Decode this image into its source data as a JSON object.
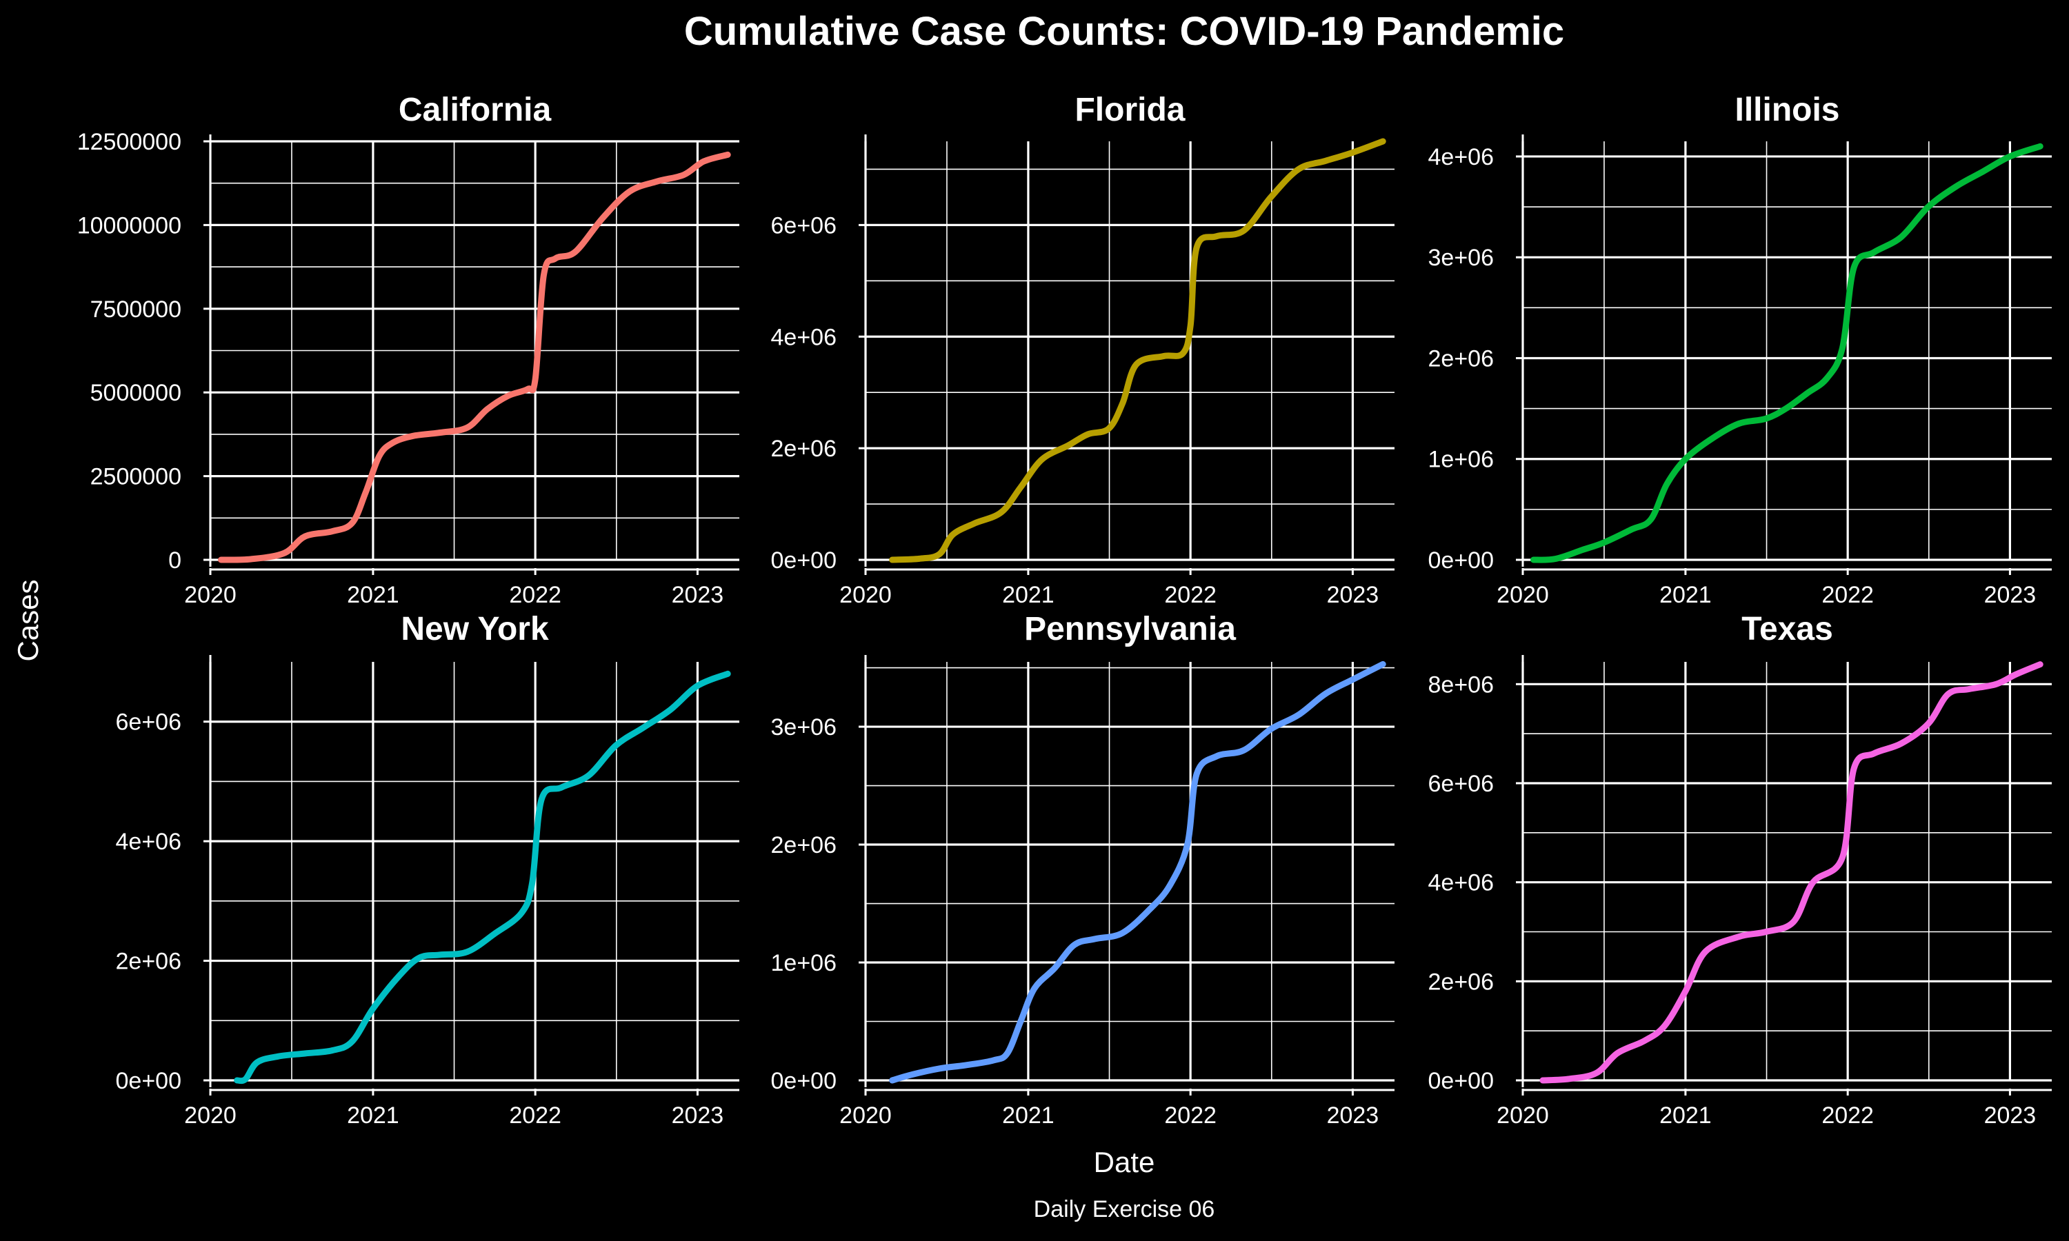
{
  "title": "Cumulative Case Counts: COVID-19 Pandemic",
  "caption": "Daily Exercise 06",
  "xlabel": "Date",
  "ylabel": "Cases",
  "chart_data": {
    "type": "line",
    "layout": "facet-grid-2x3",
    "background": "#000000",
    "grid": true,
    "legend": "none",
    "x_ticks": [
      "2020",
      "2021",
      "2022",
      "2023"
    ],
    "xlim": [
      "2020-01-01",
      "2023-04-05"
    ],
    "panels": [
      {
        "name": "California",
        "color": "#F8766D",
        "ylim": [
          0,
          12500000
        ],
        "y_ticks": [
          0,
          2500000,
          5000000,
          7500000,
          10000000,
          12500000
        ],
        "y_tick_labels": [
          "0",
          "2500000",
          "5000000",
          "7500000",
          "10000000",
          "12500000"
        ],
        "x": [
          "2020-01-25",
          "2020-04-01",
          "2020-06-15",
          "2020-08-01",
          "2020-10-01",
          "2020-11-15",
          "2020-12-15",
          "2021-01-15",
          "2021-02-15",
          "2021-04-01",
          "2021-06-01",
          "2021-08-01",
          "2021-09-15",
          "2021-11-01",
          "2021-12-15",
          "2022-01-01",
          "2022-01-20",
          "2022-02-15",
          "2022-04-01",
          "2022-06-01",
          "2022-08-01",
          "2022-10-01",
          "2022-12-01",
          "2023-01-15",
          "2023-03-10"
        ],
        "values": [
          0,
          20000,
          200000,
          700000,
          850000,
          1100000,
          2000000,
          3100000,
          3500000,
          3700000,
          3800000,
          3950000,
          4500000,
          4900000,
          5100000,
          5400000,
          8500000,
          9000000,
          9200000,
          10200000,
          11000000,
          11300000,
          11500000,
          11900000,
          12100000
        ]
      },
      {
        "name": "Florida",
        "color": "#B79F00",
        "ylim": [
          0,
          7500000
        ],
        "y_ticks": [
          0,
          2000000,
          4000000,
          6000000
        ],
        "y_tick_labels": [
          "0e+00",
          "2e+06",
          "4e+06",
          "6e+06"
        ],
        "x": [
          "2020-03-01",
          "2020-05-01",
          "2020-06-15",
          "2020-07-15",
          "2020-09-01",
          "2020-11-01",
          "2020-12-15",
          "2021-02-01",
          "2021-04-01",
          "2021-05-15",
          "2021-07-01",
          "2021-08-01",
          "2021-09-01",
          "2021-11-01",
          "2021-12-15",
          "2022-01-01",
          "2022-01-15",
          "2022-03-01",
          "2022-05-01",
          "2022-07-01",
          "2022-09-01",
          "2022-11-01",
          "2023-01-01",
          "2023-03-10"
        ],
        "values": [
          0,
          20000,
          100000,
          450000,
          650000,
          850000,
          1300000,
          1800000,
          2050000,
          2250000,
          2350000,
          2800000,
          3500000,
          3650000,
          3700000,
          4200000,
          5600000,
          5800000,
          5900000,
          6500000,
          7000000,
          7150000,
          7300000,
          7500000
        ]
      },
      {
        "name": "Illinois",
        "color": "#00BA38",
        "ylim": [
          0,
          4150000
        ],
        "y_ticks": [
          0,
          1000000,
          2000000,
          3000000,
          4000000
        ],
        "y_tick_labels": [
          "0e+00",
          "1e+06",
          "2e+06",
          "3e+06",
          "4e+06"
        ],
        "x": [
          "2020-01-25",
          "2020-03-15",
          "2020-05-15",
          "2020-07-01",
          "2020-09-01",
          "2020-10-15",
          "2020-11-20",
          "2021-01-01",
          "2021-03-01",
          "2021-05-01",
          "2021-07-01",
          "2021-08-15",
          "2021-10-01",
          "2021-11-15",
          "2021-12-20",
          "2022-01-15",
          "2022-03-01",
          "2022-05-01",
          "2022-07-01",
          "2022-09-01",
          "2022-11-01",
          "2023-01-01",
          "2023-03-10"
        ],
        "values": [
          0,
          10000,
          100000,
          170000,
          300000,
          400000,
          750000,
          1000000,
          1200000,
          1350000,
          1400000,
          1500000,
          1650000,
          1800000,
          2100000,
          2900000,
          3050000,
          3200000,
          3500000,
          3700000,
          3850000,
          4000000,
          4100000
        ]
      },
      {
        "name": "New York",
        "color": "#00BFC4",
        "ylim": [
          0,
          7000000
        ],
        "y_ticks": [
          0,
          2000000,
          4000000,
          6000000
        ],
        "y_tick_labels": [
          "0e+00",
          "2e+06",
          "4e+06",
          "6e+06"
        ],
        "x": [
          "2020-03-01",
          "2020-03-20",
          "2020-04-15",
          "2020-06-01",
          "2020-08-01",
          "2020-10-01",
          "2020-11-15",
          "2021-01-01",
          "2021-03-01",
          "2021-04-15",
          "2021-06-01",
          "2021-08-01",
          "2021-10-01",
          "2021-12-01",
          "2021-12-25",
          "2022-01-15",
          "2022-03-01",
          "2022-05-01",
          "2022-07-01",
          "2022-09-01",
          "2022-11-01",
          "2023-01-01",
          "2023-03-10"
        ],
        "values": [
          0,
          20000,
          300000,
          400000,
          450000,
          500000,
          650000,
          1200000,
          1750000,
          2050000,
          2100000,
          2150000,
          2450000,
          2800000,
          3300000,
          4700000,
          4900000,
          5100000,
          5600000,
          5900000,
          6200000,
          6600000,
          6800000
        ]
      },
      {
        "name": "Pennsylvania",
        "color": "#619CFF",
        "ylim": [
          0,
          3550000
        ],
        "y_ticks": [
          0,
          1000000,
          2000000,
          3000000
        ],
        "y_tick_labels": [
          "0e+00",
          "1e+06",
          "2e+06",
          "3e+06"
        ],
        "x": [
          "2020-03-01",
          "2020-04-15",
          "2020-06-15",
          "2020-08-15",
          "2020-10-15",
          "2020-11-15",
          "2020-12-15",
          "2021-01-15",
          "2021-03-01",
          "2021-04-15",
          "2021-06-01",
          "2021-08-01",
          "2021-10-01",
          "2021-11-15",
          "2021-12-25",
          "2022-01-15",
          "2022-03-01",
          "2022-05-01",
          "2022-07-01",
          "2022-09-01",
          "2022-11-01",
          "2023-01-01",
          "2023-03-10"
        ],
        "values": [
          0,
          50000,
          100000,
          130000,
          170000,
          230000,
          500000,
          780000,
          950000,
          1150000,
          1200000,
          1250000,
          1450000,
          1650000,
          2000000,
          2600000,
          2750000,
          2800000,
          2980000,
          3100000,
          3280000,
          3400000,
          3530000
        ]
      },
      {
        "name": "Texas",
        "color": "#F564E3",
        "ylim": [
          0,
          8450000
        ],
        "y_ticks": [
          0,
          2000000,
          4000000,
          6000000,
          8000000
        ],
        "y_tick_labels": [
          "0e+00",
          "2e+06",
          "4e+06",
          "6e+06",
          "8e+06"
        ],
        "x": [
          "2020-02-15",
          "2020-04-15",
          "2020-06-15",
          "2020-08-01",
          "2020-10-01",
          "2020-11-15",
          "2021-01-01",
          "2021-02-15",
          "2021-05-01",
          "2021-07-01",
          "2021-09-01",
          "2021-10-15",
          "2021-12-20",
          "2022-01-15",
          "2022-03-01",
          "2022-05-01",
          "2022-07-01",
          "2022-08-15",
          "2022-10-01",
          "2022-12-01",
          "2023-01-15",
          "2023-03-10"
        ],
        "values": [
          0,
          30000,
          150000,
          550000,
          800000,
          1100000,
          1800000,
          2600000,
          2900000,
          3000000,
          3200000,
          4000000,
          4500000,
          6300000,
          6600000,
          6800000,
          7200000,
          7800000,
          7900000,
          8000000,
          8200000,
          8400000
        ]
      }
    ]
  }
}
